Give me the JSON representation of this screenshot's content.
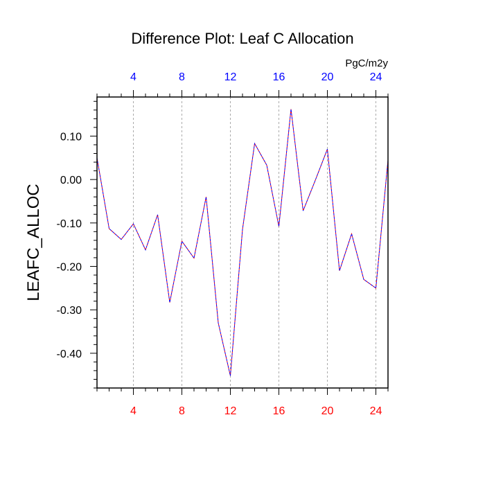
{
  "chart_data": {
    "type": "line",
    "title": "Difference Plot: Leaf C Allocation",
    "ylabel": "LEAFC_ALLOC",
    "top_axis_units": "PgC/m2y",
    "x": [
      1,
      2,
      3,
      4,
      5,
      6,
      7,
      8,
      9,
      10,
      11,
      12,
      13,
      14,
      15,
      16,
      17,
      18,
      19,
      20,
      21,
      22,
      23,
      24,
      25
    ],
    "xlim": [
      1,
      25
    ],
    "ylim": [
      -0.48,
      0.19
    ],
    "x_ticks": [
      4,
      8,
      12,
      16,
      20,
      24
    ],
    "x_tick_labels": [
      "4",
      "8",
      "12",
      "16",
      "20",
      "24"
    ],
    "y_ticks": [
      0.1,
      0.0,
      -0.1,
      -0.2,
      -0.3,
      -0.4
    ],
    "y_tick_labels": [
      "0.10",
      "0.00",
      "-0.10",
      "-0.20",
      "-0.30",
      "-0.40"
    ],
    "grid": "vertical dashed at major x ticks",
    "series": [
      {
        "name": "LEAFC_ALLOC difference",
        "line_style": "dashed",
        "values": [
          0.05,
          -0.113,
          -0.138,
          -0.102,
          -0.162,
          -0.081,
          -0.283,
          -0.142,
          -0.181,
          -0.04,
          -0.33,
          -0.452,
          -0.115,
          0.083,
          0.033,
          -0.108,
          0.162,
          -0.072,
          -0.002,
          0.07,
          -0.21,
          -0.125,
          -0.23,
          -0.25,
          0.045
        ]
      }
    ],
    "colors": {
      "line_primary": "#0000ff",
      "line_secondary": "#ff0000",
      "bottom_tick_labels": "#ff0000",
      "top_tick_labels": "#0000ff",
      "grid": "#aaaaaa",
      "axes": "#000000"
    }
  }
}
